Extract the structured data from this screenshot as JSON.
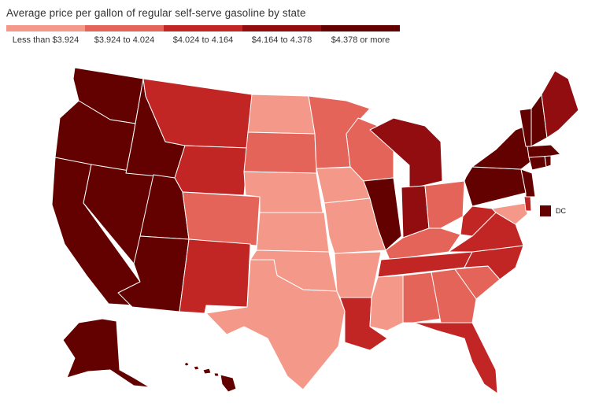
{
  "title": "Average price per gallon of regular self-serve gasoline by state",
  "legend": {
    "bins": [
      {
        "label": "Less than $3.924",
        "color": "#f4998a"
      },
      {
        "label": "$3.924 to 4.024",
        "color": "#e56459"
      },
      {
        "label": "$4.024 to 4.164",
        "color": "#c12524"
      },
      {
        "label": "$4.164 to 4.378",
        "color": "#920d0f"
      },
      {
        "label": "$4.378 or more",
        "color": "#630000"
      }
    ]
  },
  "dc": {
    "label": "DC",
    "bin": 4
  },
  "chart_data": {
    "type": "choropleth",
    "title": "Average price per gallon of regular self-serve gasoline by state",
    "bins": [
      "Less than $3.924",
      "$3.924 to 4.024",
      "$4.024 to 4.164",
      "$4.164 to 4.378",
      "$4.378 or more"
    ],
    "states": {
      "WA": 4,
      "OR": 4,
      "CA": 4,
      "NV": 4,
      "ID": 4,
      "UT": 4,
      "AZ": 4,
      "AK": 4,
      "HI": 4,
      "IL": 4,
      "NY": 4,
      "PA": 4,
      "NJ": 4,
      "VT": 4,
      "NH": 4,
      "ME": 3,
      "MA": 4,
      "CT": 4,
      "RI": 4,
      "IN": 3,
      "MI": 3,
      "MT": 2,
      "WY": 2,
      "NM": 2,
      "LA": 2,
      "WV": 2,
      "VA": 2,
      "NC": 2,
      "TN": 2,
      "FL": 2,
      "DE": 2,
      "CO": 1,
      "SD": 1,
      "MN": 1,
      "WI": 1,
      "OH": 1,
      "KY": 1,
      "AL": 1,
      "GA": 1,
      "SC": 1,
      "ND": 0,
      "NE": 0,
      "KS": 0,
      "OK": 0,
      "TX": 0,
      "IA": 0,
      "MO": 0,
      "AR": 0,
      "MS": 0,
      "MD": 0
    }
  }
}
